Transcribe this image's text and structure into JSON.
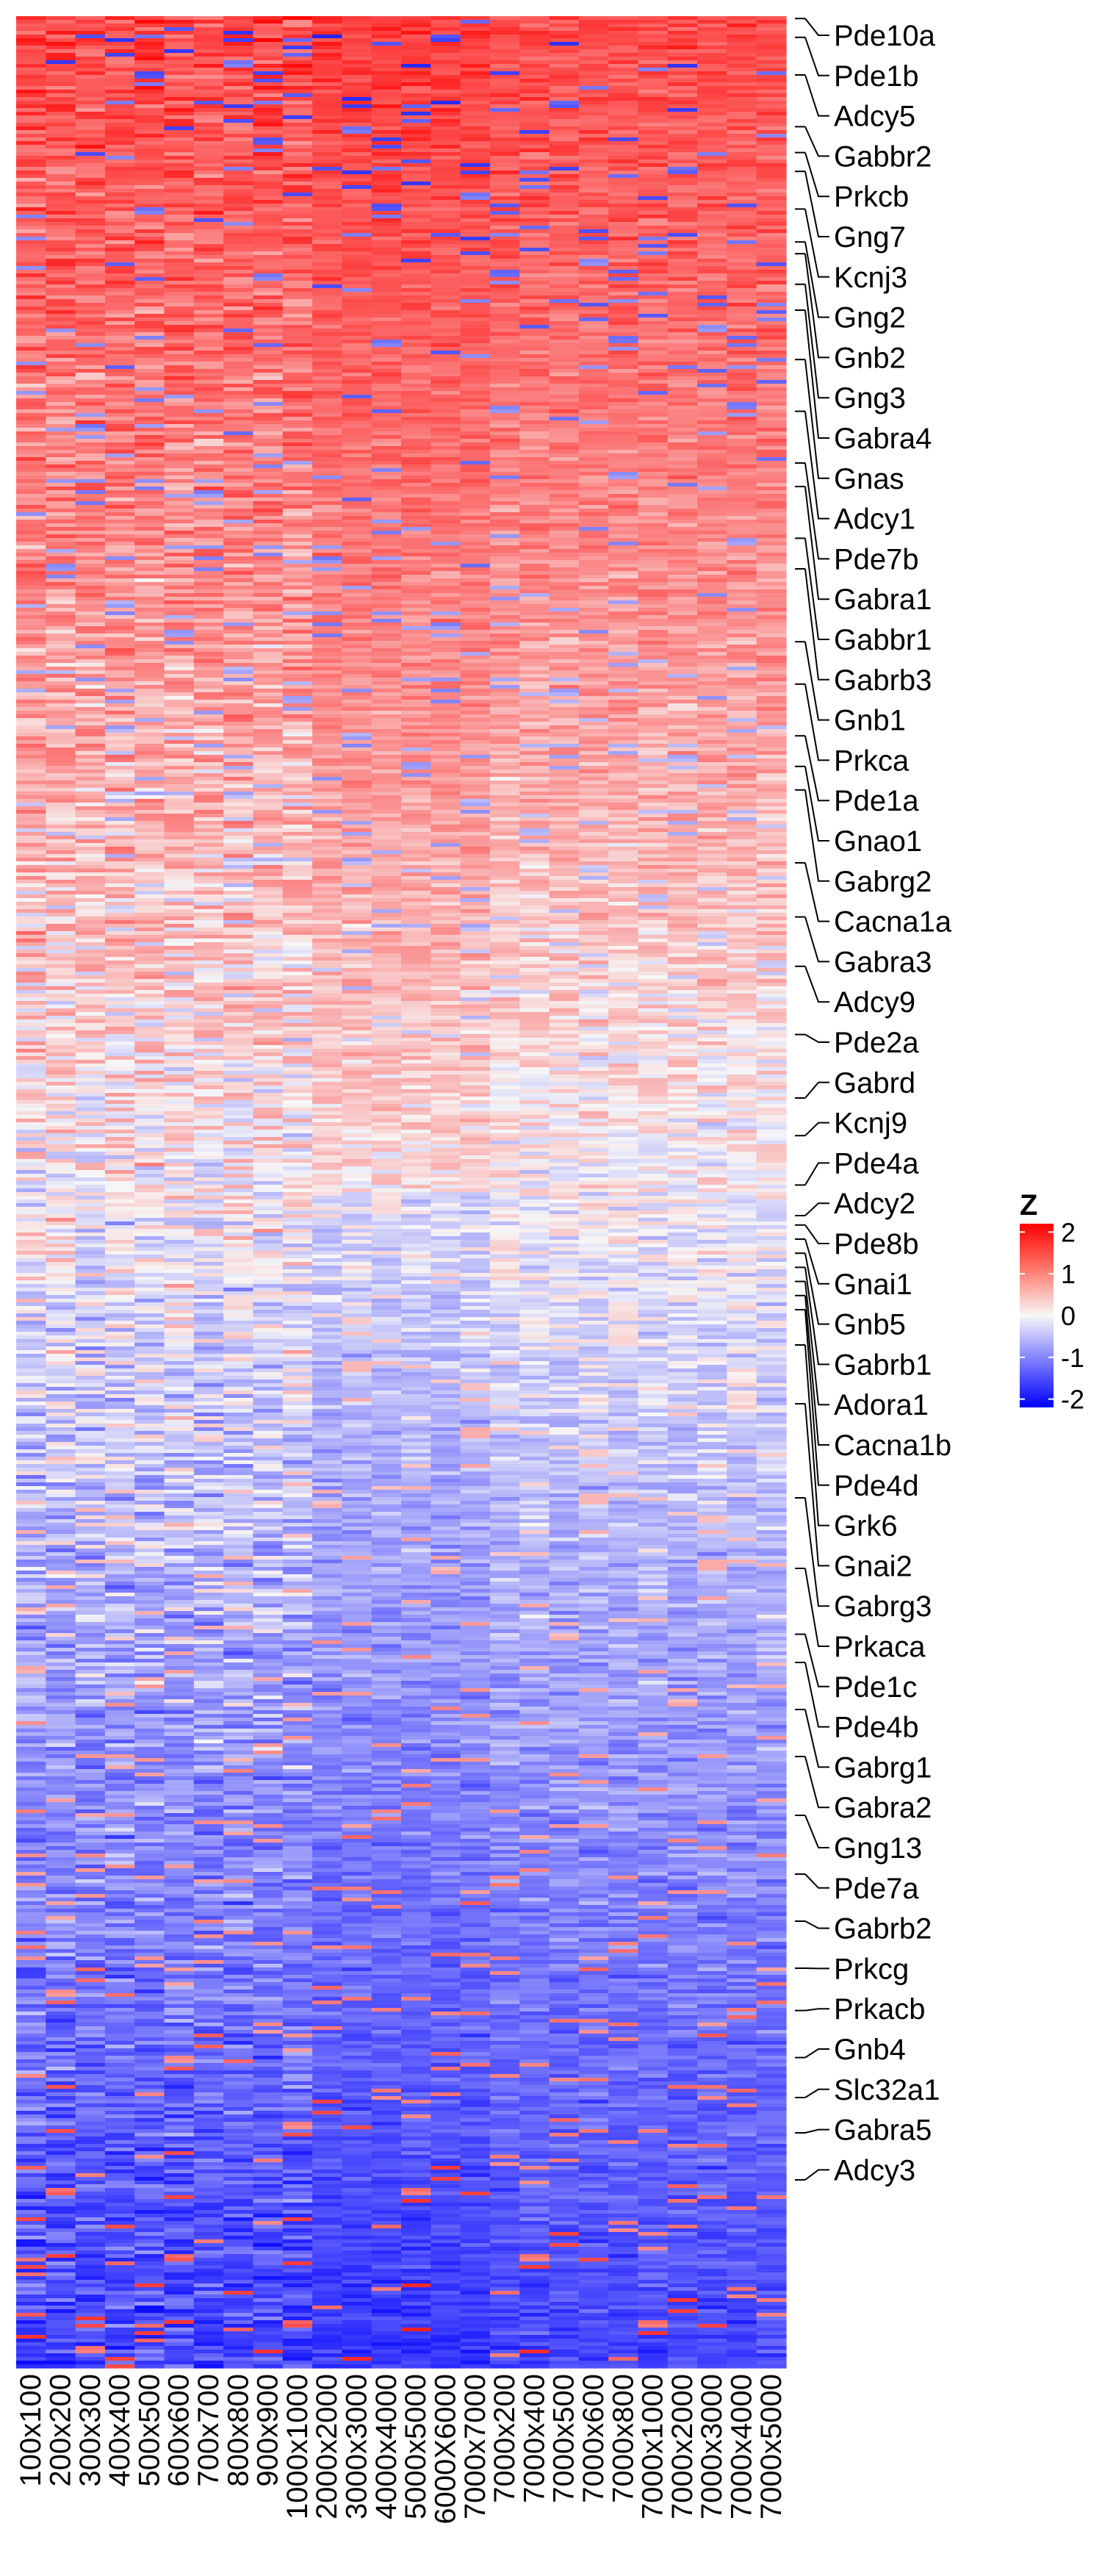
{
  "chart_data": {
    "type": "heatmap",
    "columns": [
      "100x100",
      "200x200",
      "300x300",
      "400x400",
      "500x500",
      "600x600",
      "700x700",
      "800x800",
      "900x900",
      "1000x1000",
      "2000x2000",
      "3000x3000",
      "4000x4000",
      "5000x5000",
      "6000X6000",
      "7000x7000",
      "7000x200",
      "7000x400",
      "7000x500",
      "7000x600",
      "7000x800",
      "7000x1000",
      "7000x2000",
      "7000x3000",
      "7000x4000",
      "7000x5000"
    ],
    "labeled_genes": [
      "Pde10a",
      "Pde1b",
      "Adcy5",
      "Gabbr2",
      "Prkcb",
      "Gng7",
      "Kcnj3",
      "Gng2",
      "Gnb2",
      "Gng3",
      "Gabra4",
      "Gnas",
      "Adcy1",
      "Pde7b",
      "Gabra1",
      "Gabbr1",
      "Gabrb3",
      "Gnb1",
      "Prkca",
      "Pde1a",
      "Gnao1",
      "Gabrg2",
      "Cacna1a",
      "Gabra3",
      "Adcy9",
      "Pde2a",
      "Gabrd",
      "Kcnj9",
      "Pde4a",
      "Adcy2",
      "Pde8b",
      "Gnai1",
      "Gnb5",
      "Gabrb1",
      "Adora1",
      "Cacna1b",
      "Pde4d",
      "Grk6",
      "Gnai2",
      "Gabrg3",
      "Prkaca",
      "Pde1c",
      "Pde4b",
      "Gabrg1",
      "Gabra2",
      "Gng13",
      "Pde7a",
      "Gabrb2",
      "Prkcg",
      "Prkacb",
      "Gnb4",
      "Slc32a1",
      "Gabra5",
      "Adcy3"
    ],
    "gene_row_fraction": [
      0.001,
      0.009,
      0.025,
      0.047,
      0.058,
      0.066,
      0.082,
      0.096,
      0.101,
      0.114,
      0.125,
      0.146,
      0.168,
      0.19,
      0.2,
      0.222,
      0.235,
      0.266,
      0.284,
      0.306,
      0.319,
      0.329,
      0.36,
      0.383,
      0.404,
      0.433,
      0.46,
      0.476,
      0.497,
      0.51,
      0.514,
      0.52,
      0.526,
      0.532,
      0.538,
      0.544,
      0.55,
      0.565,
      0.59,
      0.63,
      0.66,
      0.688,
      0.7,
      0.72,
      0.74,
      0.765,
      0.79,
      0.81,
      0.83,
      0.848,
      0.868,
      0.885,
      0.9,
      0.92
    ],
    "legend": {
      "title": "Z",
      "ticks": [
        2,
        1,
        0,
        -1,
        -2
      ],
      "range": [
        -2.2,
        2.2
      ],
      "colors": {
        "low": "#0000ff",
        "mid": "#f7f7f7",
        "high": "#ff0000"
      }
    }
  }
}
